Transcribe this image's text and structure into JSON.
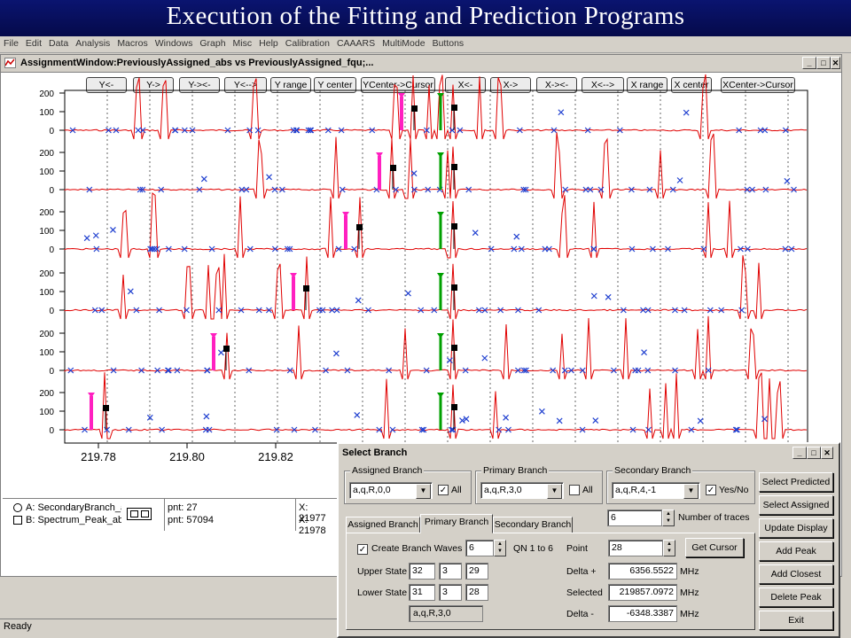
{
  "slide": {
    "title": "Execution of the Fitting and Prediction Programs"
  },
  "menubar": {
    "items": [
      "File",
      "Edit",
      "Data",
      "Analysis",
      "Macros",
      "Windows",
      "Graph",
      "Misc",
      "Help",
      "Calibration",
      "CAAARS",
      "MultiMode",
      "Buttons"
    ]
  },
  "graph_window": {
    "title": "AssignmentWindow:PreviouslyAssigned_abs vs PreviouslyAssigned_fqu;...",
    "toolbar": [
      "Y<-",
      "Y->",
      "Y-><-",
      "Y<-->",
      "Y range",
      "Y center",
      "YCenter->Cursor",
      "X<-",
      "X->",
      "X-><-",
      "X<-->",
      "X range",
      "X center",
      "XCenter->Cursor"
    ],
    "y_ticks": [
      "200",
      "100",
      "0"
    ],
    "x_ticks": [
      "219.78",
      "219.80",
      "219.82"
    ],
    "legend": [
      {
        "label": "A: SecondaryBranch_a",
        "pnt": "pnt: 27",
        "x": "X: 21977"
      },
      {
        "label": "B: Spectrum_Peak_ab:",
        "pnt": "pnt: 57094",
        "x": "X: 21978"
      }
    ]
  },
  "status_bar": {
    "text": "Ready"
  },
  "dialog": {
    "title": "Select Branch",
    "assigned_branch": {
      "label": "Assigned Branch",
      "value": "a,q,R,0,0",
      "all_label": "All",
      "all_checked": true
    },
    "primary_branch": {
      "label": "Primary Branch",
      "value": "a,q,R,3,0",
      "all_label": "All",
      "all_checked": false
    },
    "secondary_branch": {
      "label": "Secondary Branch",
      "value": "a,q,R,4,-1",
      "yesno_label": "Yes/No",
      "yesno_checked": true
    },
    "traces": {
      "value": "6",
      "label": "Number of traces"
    },
    "tabs": [
      "Assigned Branch",
      "Primary Branch",
      "Secondary Branch"
    ],
    "active_tab": "Primary Branch",
    "create_waves": {
      "label": "Create Branch Waves",
      "checked": true,
      "value": "6",
      "qn_label": "QN 1 to 6"
    },
    "point": {
      "label": "Point",
      "value": "28",
      "button": "Get Cursor"
    },
    "upper_state": {
      "label": "Upper State",
      "values": [
        "32",
        "3",
        "29"
      ]
    },
    "lower_state": {
      "label": "Lower State",
      "values": [
        "31",
        "3",
        "28"
      ]
    },
    "branch_readout": "a,q,R,3,0",
    "delta_plus": {
      "label": "Delta +",
      "value": "6356.5522",
      "unit": "MHz"
    },
    "selected": {
      "label": "Selected",
      "value": "219857.0972",
      "unit": "MHz"
    },
    "delta_minus": {
      "label": "Delta -",
      "value": "-6348.3387",
      "unit": "MHz"
    },
    "buttons": [
      "Select Predicted",
      "Select Assigned",
      "Update Display",
      "Add Peak",
      "Add Closest",
      "Delete Peak",
      "Exit"
    ]
  },
  "colors": {
    "trace": "#e00000",
    "marker": "#2040d0",
    "assigned": "#ff20c0",
    "primary": "#00a000",
    "title_bg": "#050a4a"
  }
}
